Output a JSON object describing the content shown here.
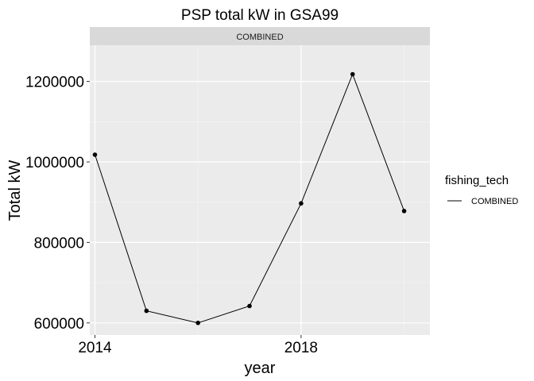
{
  "chart_data": {
    "type": "line",
    "title": "PSP total kW in GSA99",
    "xlabel": "year",
    "ylabel": "Total kW",
    "facet_strip": "COMBINED",
    "x": [
      2014,
      2015,
      2016,
      2017,
      2018,
      2019,
      2020
    ],
    "series": [
      {
        "name": "COMBINED",
        "values": [
          1018000,
          630000,
          600000,
          642000,
          897000,
          1218000,
          878000
        ]
      }
    ],
    "xlim": [
      2013.9,
      2020.5
    ],
    "ylim": [
      570000,
      1290000
    ],
    "x_ticks": [
      2014,
      2018
    ],
    "x_tick_labels": [
      "2014",
      "2018"
    ],
    "y_ticks": [
      600000,
      800000,
      1000000,
      1200000
    ],
    "y_tick_labels": [
      "600000",
      "800000",
      "1000000",
      "1200000"
    ],
    "legend": {
      "title": "fishing_tech",
      "position": "right",
      "entries": [
        "COMBINED"
      ]
    },
    "grid": true,
    "colors": {
      "panel_bg": "#EBEBEB",
      "grid_major": "#FFFFFF",
      "strip_bg": "#D9D9D9",
      "line": "#000000"
    }
  }
}
